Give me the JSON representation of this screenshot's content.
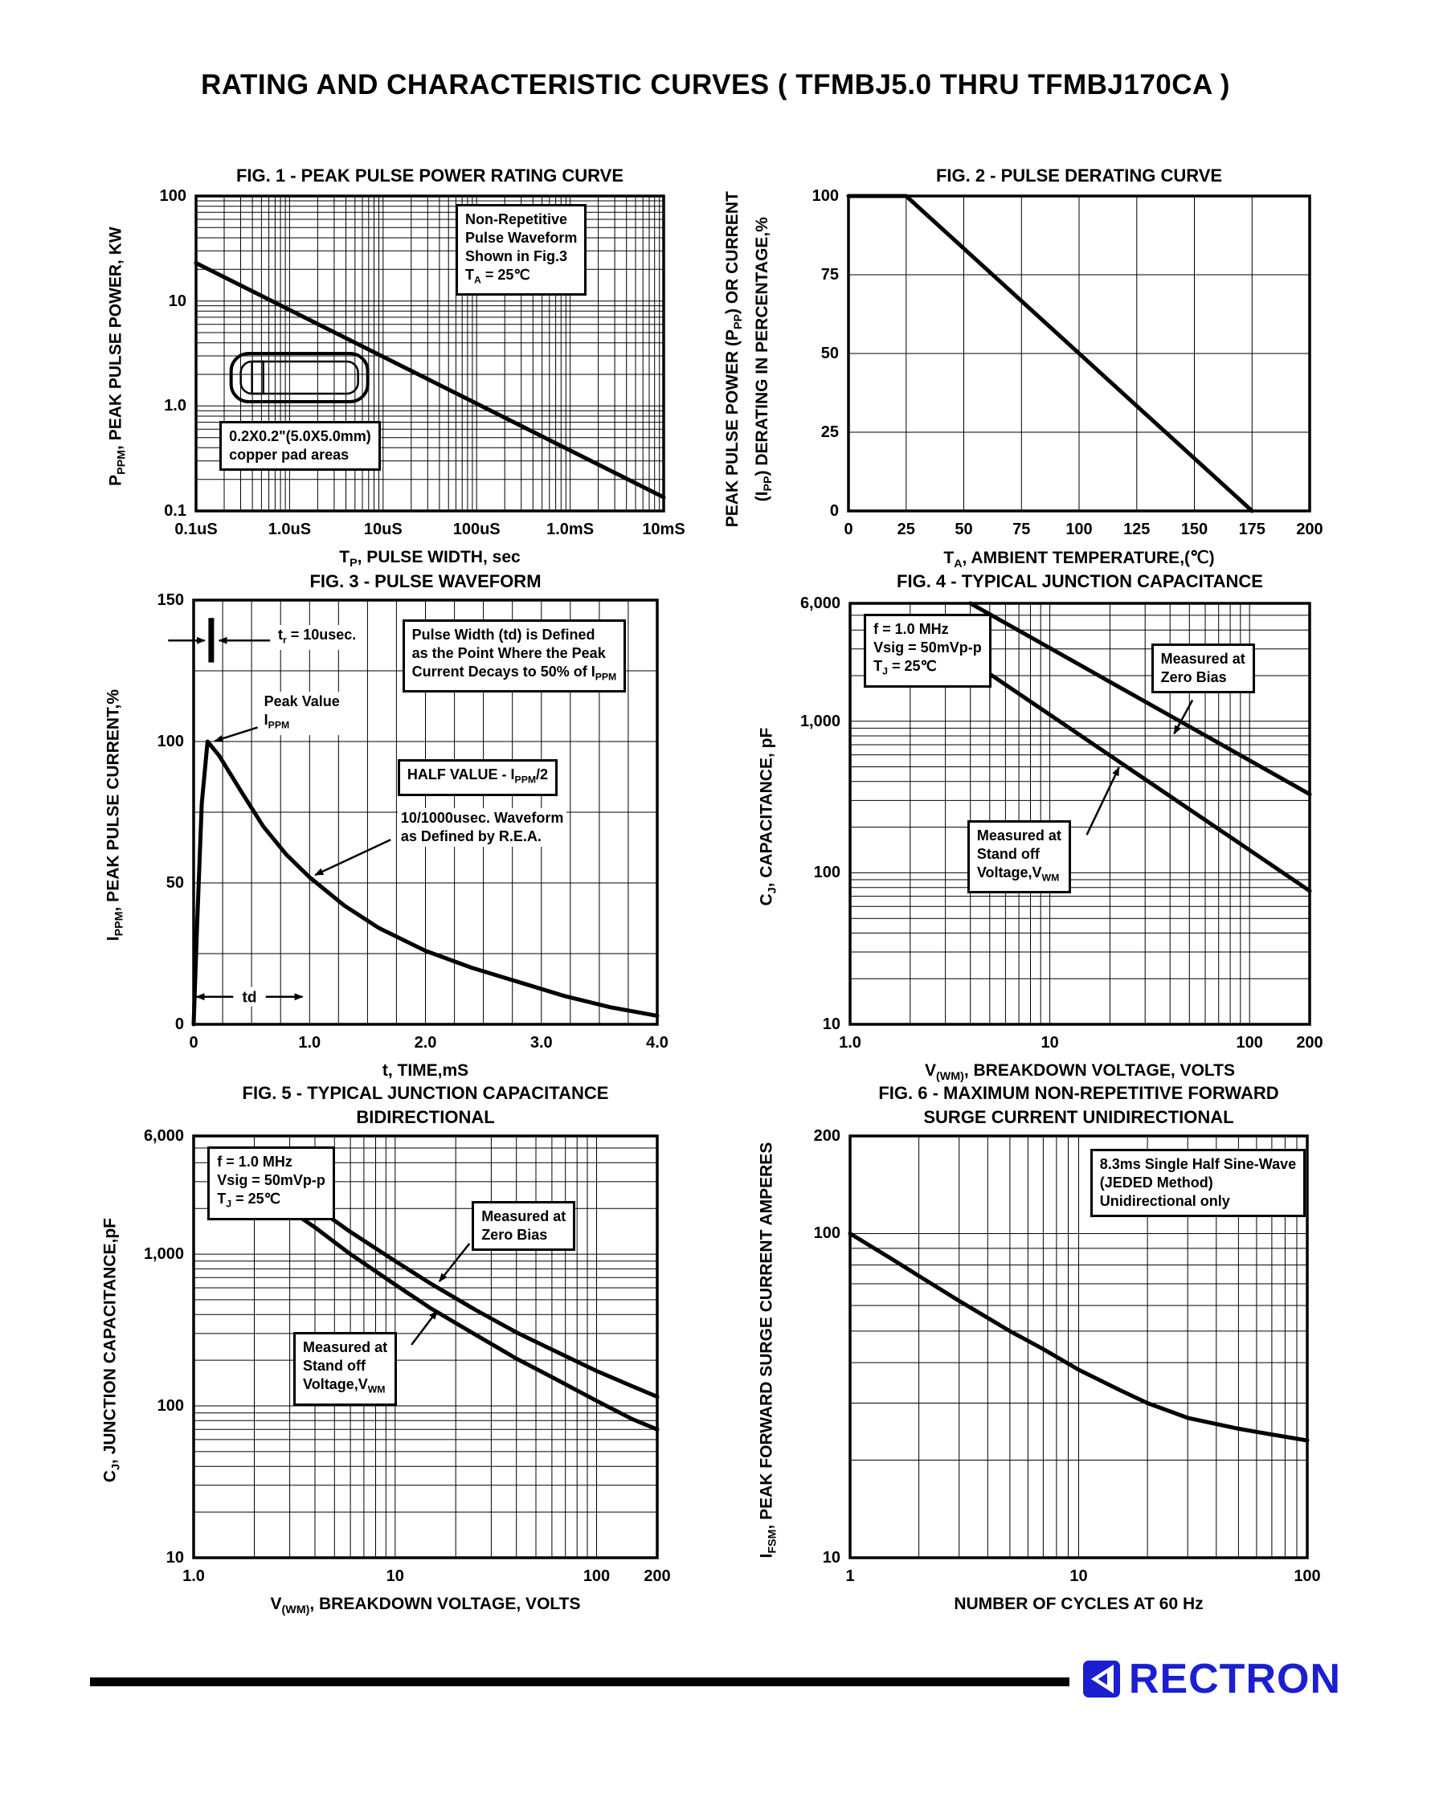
{
  "page": {
    "title": "RATING AND CHARACTERISTIC CURVES ( TFMBJ5.0 THRU TFMBJ170CA )",
    "footer_brand": "RECTRON",
    "brand_color": "#1b1fd0"
  },
  "chart_data": [
    {
      "id": "fig1",
      "type": "line",
      "title": [
        "FIG. 1 - PEAK PULSE POWER RATING CURVE"
      ],
      "xlabel": "T[P], PULSE WIDTH, sec",
      "ylabel": [
        "P[PPM], PEAK PULSE POWER, KW"
      ],
      "x_axis": {
        "scale": "log",
        "min": 1e-07,
        "max": 0.01,
        "ticks": [
          {
            "v": 1e-07,
            "l": "0.1uS"
          },
          {
            "v": 1e-06,
            "l": "1.0uS"
          },
          {
            "v": 1e-05,
            "l": "10uS"
          },
          {
            "v": 0.0001,
            "l": "100uS"
          },
          {
            "v": 0.001,
            "l": "1.0mS"
          },
          {
            "v": 0.01,
            "l": "10mS"
          }
        ]
      },
      "y_axis": {
        "scale": "log",
        "min": 0.1,
        "max": 100,
        "ticks": [
          {
            "v": 0.1,
            "l": "0.1"
          },
          {
            "v": 1,
            "l": "1.0"
          },
          {
            "v": 10,
            "l": "10"
          },
          {
            "v": 100,
            "l": "100"
          }
        ]
      },
      "series": [
        {
          "name": "peak-pulse-power",
          "points": [
            [
              1e-07,
              23
            ],
            [
              0.01,
              0.135
            ]
          ]
        }
      ],
      "annotations": [
        {
          "name": "note-nonrepetitive",
          "boxed": true,
          "fx": 0.555,
          "fy": 0.025,
          "text": [
            "Non-Repetitive",
            "Pulse Waveform",
            "Shown in Fig.3",
            "T[A] = 25℃"
          ]
        },
        {
          "name": "note-pad",
          "boxed": true,
          "fx": 0.05,
          "fy": 0.715,
          "text": [
            "0.2X0.2\"(5.0X5.0mm)",
            "copper pad areas"
          ]
        }
      ],
      "marks": [
        {
          "type": "package",
          "fx": 0.075,
          "fy": 0.5
        }
      ]
    },
    {
      "id": "fig2",
      "type": "line",
      "title": [
        "FIG. 2 - PULSE DERATING CURVE"
      ],
      "xlabel": "T[A], AMBIENT TEMPERATURE,(℃)",
      "ylabel": [
        "PEAK PULSE POWER (P[PP]) OR CURRENT",
        "(I[PP]) DERATING IN PERCENTAGE,%"
      ],
      "x_axis": {
        "scale": "linear",
        "min": 0,
        "max": 200,
        "grid_step": 25,
        "ticks": [
          {
            "v": 0,
            "l": "0"
          },
          {
            "v": 25,
            "l": "25"
          },
          {
            "v": 50,
            "l": "50"
          },
          {
            "v": 75,
            "l": "75"
          },
          {
            "v": 100,
            "l": "100"
          },
          {
            "v": 125,
            "l": "125"
          },
          {
            "v": 150,
            "l": "150"
          },
          {
            "v": 175,
            "l": "175"
          },
          {
            "v": 200,
            "l": "200"
          }
        ]
      },
      "y_axis": {
        "scale": "linear",
        "min": 0,
        "max": 100,
        "grid_step": 25,
        "ticks": [
          {
            "v": 0,
            "l": "0"
          },
          {
            "v": 25,
            "l": "25"
          },
          {
            "v": 50,
            "l": "50"
          },
          {
            "v": 75,
            "l": "75"
          },
          {
            "v": 100,
            "l": "100"
          }
        ]
      },
      "series": [
        {
          "name": "derating",
          "points": [
            [
              0,
              100
            ],
            [
              25,
              100
            ],
            [
              175,
              0
            ]
          ]
        }
      ],
      "annotations": [],
      "marks": []
    },
    {
      "id": "fig3",
      "type": "line",
      "title": [
        "FIG. 3 - PULSE WAVEFORM"
      ],
      "xlabel": "t, TIME,mS",
      "ylabel": [
        "I[PPM], PEAK PULSE CURRENT,%"
      ],
      "x_axis": {
        "scale": "linear",
        "min": 0,
        "max": 4,
        "grid_step": 0.25,
        "ticks": [
          {
            "v": 0,
            "l": "0"
          },
          {
            "v": 1,
            "l": "1.0"
          },
          {
            "v": 2,
            "l": "2.0"
          },
          {
            "v": 3,
            "l": "3.0"
          },
          {
            "v": 4,
            "l": "4.0"
          }
        ]
      },
      "y_axis": {
        "scale": "linear",
        "min": 0,
        "max": 150,
        "grid_step": 25,
        "ticks": [
          {
            "v": 0,
            "l": "0"
          },
          {
            "v": 50,
            "l": "50"
          },
          {
            "v": 100,
            "l": "100"
          },
          {
            "v": 150,
            "l": "150"
          }
        ]
      },
      "series": [
        {
          "name": "pulse-waveform",
          "points": [
            [
              0,
              0
            ],
            [
              0.03,
              35
            ],
            [
              0.07,
              78
            ],
            [
              0.12,
              100
            ],
            [
              0.22,
              95
            ],
            [
              0.4,
              83
            ],
            [
              0.6,
              70
            ],
            [
              0.8,
              60
            ],
            [
              1.0,
              52
            ],
            [
              1.3,
              42
            ],
            [
              1.6,
              34
            ],
            [
              2.0,
              26
            ],
            [
              2.4,
              20
            ],
            [
              2.8,
              15
            ],
            [
              3.2,
              10
            ],
            [
              3.6,
              6
            ],
            [
              4.0,
              3
            ]
          ]
        }
      ],
      "annotations": [
        {
          "name": "note-tr",
          "boxed": false,
          "fx": 0.175,
          "fy": 0.058,
          "text": [
            "t[r] = 10usec."
          ]
        },
        {
          "name": "note-peak",
          "boxed": false,
          "fx": 0.145,
          "fy": 0.215,
          "text": [
            "Peak Value",
            "I[PPM]"
          ]
        },
        {
          "name": "note-pulse-width",
          "boxed": true,
          "fx": 0.45,
          "fy": 0.045,
          "text": [
            "Pulse Width (td) is Defined",
            "as the Point Where the Peak",
            "Current Decays to 50% of I[PPM]"
          ]
        },
        {
          "name": "note-half-value",
          "boxed": true,
          "fx": 0.44,
          "fy": 0.375,
          "text": [
            "HALF VALUE - I[PPM]/2"
          ]
        },
        {
          "name": "note-rea",
          "boxed": false,
          "fx": 0.44,
          "fy": 0.49,
          "text": [
            "10/1000usec. Waveform",
            "as Defined by R.E.A."
          ]
        }
      ],
      "marks": [
        {
          "type": "vbar",
          "fx": 0.038,
          "fy": 0.042,
          "fh": 0.105
        },
        {
          "type": "arrow",
          "x1": 0.165,
          "y1": 0.095,
          "x2": 0.055,
          "y2": 0.095
        },
        {
          "type": "arrow",
          "x1": -0.055,
          "y1": 0.095,
          "x2": 0.024,
          "y2": 0.095
        },
        {
          "type": "arrow",
          "x1": 0.138,
          "y1": 0.3,
          "x2": 0.046,
          "y2": 0.332
        },
        {
          "type": "arrow",
          "x1": 0.425,
          "y1": 0.565,
          "x2": 0.262,
          "y2": 0.648
        },
        {
          "type": "dblarrow",
          "x1": 0.006,
          "y1": 0.935,
          "x2": 0.235,
          "y2": 0.935,
          "label": "td"
        }
      ]
    },
    {
      "id": "fig4",
      "type": "line",
      "title": [
        "FIG. 4 - TYPICAL JUNCTION CAPACITANCE"
      ],
      "xlabel": "V[(WM)], BREAKDOWN VOLTAGE, VOLTS",
      "ylabel": [
        "C[J], CAPACITANCE, pF"
      ],
      "x_axis": {
        "scale": "log",
        "min": 1,
        "max": 200,
        "ticks": [
          {
            "v": 1,
            "l": "1.0"
          },
          {
            "v": 10,
            "l": "10"
          },
          {
            "v": 100,
            "l": "100"
          },
          {
            "v": 200,
            "l": "200"
          }
        ]
      },
      "y_axis": {
        "scale": "log",
        "min": 10,
        "max": 6000,
        "ticks": [
          {
            "v": 10,
            "l": "10"
          },
          {
            "v": 100,
            "l": "100"
          },
          {
            "v": 1000,
            "l": "1,000"
          },
          {
            "v": 6000,
            "l": "6,000"
          }
        ]
      },
      "series": [
        {
          "name": "zero-bias",
          "points": [
            [
              4,
              6000
            ],
            [
              200,
              330
            ]
          ]
        },
        {
          "name": "stand-off",
          "points": [
            [
              4.2,
              2400
            ],
            [
              200,
              76
            ]
          ]
        }
      ],
      "annotations": [
        {
          "name": "note-conditions",
          "boxed": true,
          "fx": 0.03,
          "fy": 0.025,
          "text": [
            "f = 1.0 MHz",
            "Vsig = 50mVp-p",
            "T[J] = 25℃"
          ]
        },
        {
          "name": "note-zero-bias",
          "boxed": true,
          "fx": 0.655,
          "fy": 0.095,
          "text": [
            "Measured at",
            "Zero Bias"
          ]
        },
        {
          "name": "note-standoff",
          "boxed": true,
          "fx": 0.255,
          "fy": 0.515,
          "text": [
            "Measured at",
            "Stand off",
            "Voltage,V[WM]"
          ]
        }
      ],
      "marks": [
        {
          "type": "arrow",
          "x1": 0.745,
          "y1": 0.23,
          "x2": 0.705,
          "y2": 0.31
        },
        {
          "type": "arrow",
          "x1": 0.515,
          "y1": 0.55,
          "x2": 0.585,
          "y2": 0.39
        }
      ]
    },
    {
      "id": "fig5",
      "type": "line",
      "title": [
        "FIG. 5 - TYPICAL JUNCTION CAPACITANCE",
        "BIDIRECTIONAL"
      ],
      "xlabel": "V[(WM)], BREAKDOWN VOLTAGE, VOLTS",
      "ylabel": [
        "C[J], JUNCTION CAPACITANCE,pF"
      ],
      "x_axis": {
        "scale": "log",
        "min": 1,
        "max": 200,
        "ticks": [
          {
            "v": 1,
            "l": "1.0"
          },
          {
            "v": 10,
            "l": "10"
          },
          {
            "v": 100,
            "l": "100"
          },
          {
            "v": 200,
            "l": "200"
          }
        ]
      },
      "y_axis": {
        "scale": "log",
        "min": 10,
        "max": 6000,
        "ticks": [
          {
            "v": 10,
            "l": "10"
          },
          {
            "v": 100,
            "l": "100"
          },
          {
            "v": 1000,
            "l": "1,000"
          },
          {
            "v": 6000,
            "l": "6,000"
          }
        ]
      },
      "series": [
        {
          "name": "zero-bias",
          "points": [
            [
              3,
              2600
            ],
            [
              4,
              2050
            ],
            [
              6,
              1400
            ],
            [
              10,
              900
            ],
            [
              15,
              640
            ],
            [
              25,
              430
            ],
            [
              40,
              305
            ],
            [
              60,
              235
            ],
            [
              100,
              170
            ],
            [
              150,
              135
            ],
            [
              200,
              115
            ]
          ]
        },
        {
          "name": "stand-off",
          "points": [
            [
              3,
              1950
            ],
            [
              4,
              1500
            ],
            [
              6,
              1000
            ],
            [
              10,
              630
            ],
            [
              15,
              440
            ],
            [
              25,
              295
            ],
            [
              40,
              205
            ],
            [
              60,
              155
            ],
            [
              100,
              108
            ],
            [
              150,
              82
            ],
            [
              200,
              70
            ]
          ]
        }
      ],
      "annotations": [
        {
          "name": "note-conditions",
          "boxed": true,
          "fx": 0.03,
          "fy": 0.025,
          "text": [
            "f = 1.0 MHz",
            "Vsig = 50mVp-p",
            "T[J] = 25℃"
          ]
        },
        {
          "name": "note-zero-bias",
          "boxed": true,
          "fx": 0.6,
          "fy": 0.155,
          "text": [
            "Measured at",
            "Zero Bias"
          ]
        },
        {
          "name": "note-standoff",
          "boxed": true,
          "fx": 0.215,
          "fy": 0.465,
          "text": [
            "Measured at",
            "Stand off",
            "Voltage,V[WM]"
          ]
        }
      ],
      "marks": [
        {
          "type": "arrow",
          "x1": 0.595,
          "y1": 0.255,
          "x2": 0.53,
          "y2": 0.345
        },
        {
          "type": "arrow",
          "x1": 0.47,
          "y1": 0.495,
          "x2": 0.525,
          "y2": 0.415
        }
      ]
    },
    {
      "id": "fig6",
      "type": "line",
      "title": [
        "FIG. 6 - MAXIMUM NON-REPETITIVE FORWARD",
        "SURGE CURRENT UNIDIRECTIONAL"
      ],
      "xlabel": "NUMBER OF CYCLES AT 60 Hz",
      "ylabel": [
        "I[FSM], PEAK FORWARD SURGE CURRENT AMPERES"
      ],
      "x_axis": {
        "scale": "log",
        "min": 1,
        "max": 100,
        "ticks": [
          {
            "v": 1,
            "l": "1"
          },
          {
            "v": 10,
            "l": "10"
          },
          {
            "v": 100,
            "l": "100"
          }
        ]
      },
      "y_axis": {
        "scale": "log",
        "min": 10,
        "max": 200,
        "ticks": [
          {
            "v": 10,
            "l": "10"
          },
          {
            "v": 100,
            "l": "100"
          },
          {
            "v": 200,
            "l": "200"
          }
        ]
      },
      "series": [
        {
          "name": "surge-current",
          "points": [
            [
              1,
              100
            ],
            [
              1.5,
              84
            ],
            [
              2,
              74
            ],
            [
              3,
              62
            ],
            [
              5,
              50
            ],
            [
              7,
              44
            ],
            [
              10,
              38
            ],
            [
              15,
              33
            ],
            [
              20,
              30
            ],
            [
              30,
              27
            ],
            [
              50,
              25
            ],
            [
              70,
              24
            ],
            [
              100,
              23
            ]
          ]
        }
      ],
      "annotations": [
        {
          "name": "note-method",
          "boxed": true,
          "fx": 0.525,
          "fy": 0.03,
          "text": [
            "8.3ms Single Half Sine-Wave",
            "(JEDED Method)",
            "Unidirectional only"
          ]
        }
      ],
      "marks": []
    }
  ]
}
